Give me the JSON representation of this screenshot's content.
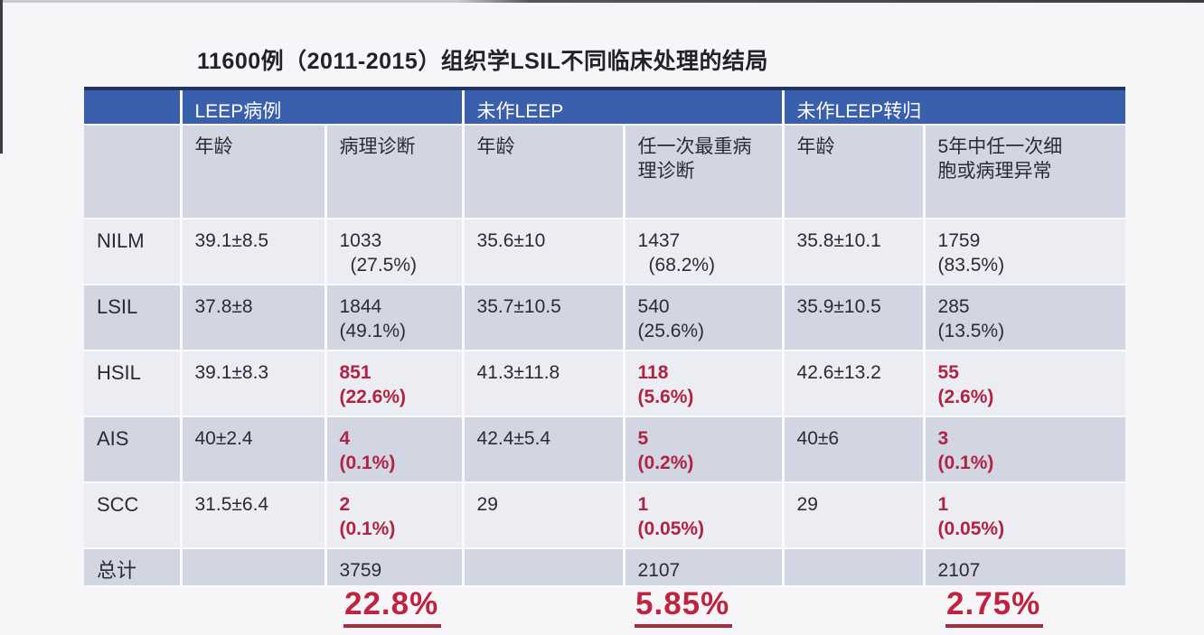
{
  "page": {
    "title": "11600例（2011-2015）组织学LSIL不同临床处理的结局"
  },
  "colors": {
    "header_blue": "#3a5fac",
    "header_navy_border": "#20355f",
    "row_light": "#ebedf2",
    "row_dark": "#d2d5e2",
    "highlight_red": "#b02342",
    "summary_red": "#c0233f",
    "background": "#f6f6f8"
  },
  "table": {
    "group_headers": [
      {
        "label": "LEEP病例"
      },
      {
        "label": "未作LEEP"
      },
      {
        "label": "未作LEEP转归"
      }
    ],
    "column_headers": [
      "年龄",
      "病理诊断",
      "年龄",
      "任一次最重病理诊断",
      "年龄",
      "5年中任一次细胞或病理异常"
    ],
    "rows": [
      {
        "label": "NILM",
        "cells": [
          {
            "n": "39.1±8.5"
          },
          {
            "n": "1033",
            "p": "(27.5%)",
            "ind": true
          },
          {
            "n": "35.6±10"
          },
          {
            "n": "1437",
            "p": "(68.2%)",
            "ind": true
          },
          {
            "n": "35.8±10.1"
          },
          {
            "n": "1759",
            "p": "(83.5%)"
          }
        ]
      },
      {
        "label": "LSIL",
        "cells": [
          {
            "n": "37.8±8"
          },
          {
            "n": "1844",
            "p": "(49.1%)"
          },
          {
            "n": "35.7±10.5"
          },
          {
            "n": "540",
            "p": "(25.6%)"
          },
          {
            "n": "35.9±10.5"
          },
          {
            "n": "285",
            "p": "(13.5%)"
          }
        ]
      },
      {
        "label": "HSIL",
        "cells": [
          {
            "n": "39.1±8.3"
          },
          {
            "n": "851",
            "p": "(22.6%)",
            "red": true
          },
          {
            "n": "41.3±11.8"
          },
          {
            "n": "118",
            "p": "(5.6%)",
            "red": true
          },
          {
            "n": "42.6±13.2"
          },
          {
            "n": "55",
            "p": "(2.6%)",
            "red": true
          }
        ]
      },
      {
        "label": "AIS",
        "cells": [
          {
            "n": "40±2.4"
          },
          {
            "n": "4",
            "p": "(0.1%)",
            "red": true
          },
          {
            "n": "42.4±5.4"
          },
          {
            "n": "5",
            "p": "(0.2%)",
            "red": true
          },
          {
            "n": "40±6"
          },
          {
            "n": "3",
            "p": "(0.1%)",
            "red": true
          }
        ]
      },
      {
        "label": "SCC",
        "cells": [
          {
            "n": "31.5±6.4"
          },
          {
            "n": "2",
            "p": "(0.1%)",
            "red": true
          },
          {
            "n": "29"
          },
          {
            "n": "1",
            "p": "(0.05%)",
            "red": true
          },
          {
            "n": "29"
          },
          {
            "n": "1",
            "p": "(0.05%)",
            "red": true
          }
        ]
      },
      {
        "label": "总计",
        "cells": [
          {
            "n": ""
          },
          {
            "n": "3759"
          },
          {
            "n": ""
          },
          {
            "n": "2107"
          },
          {
            "n": ""
          },
          {
            "n": "2107"
          }
        ]
      }
    ]
  },
  "summary_percentages": [
    {
      "group": "LEEP病例",
      "value": "22.8%"
    },
    {
      "group": "未作LEEP",
      "value": "5.85%"
    },
    {
      "group": "未作LEEP转归",
      "value": "2.75%"
    }
  ]
}
